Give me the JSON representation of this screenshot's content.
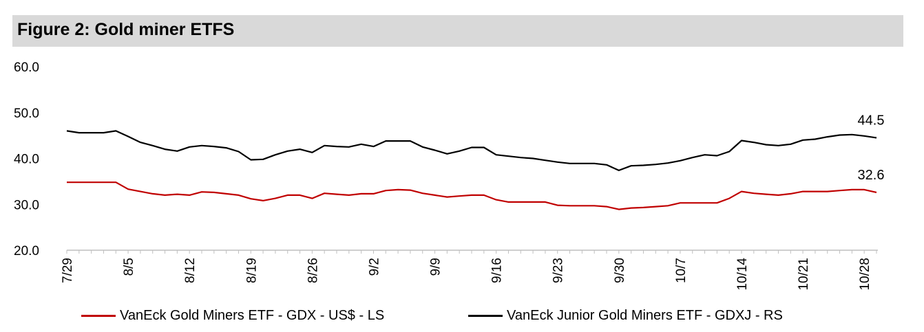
{
  "figure_title": "Figure 2: Gold miner ETFS",
  "colors": {
    "gdx": "#c00000",
    "gdxj": "#000000",
    "title_bg": "#d9d9d9"
  },
  "chart_data": {
    "type": "line",
    "title": "Figure 2: Gold miner ETFS",
    "ylim": [
      20,
      60
    ],
    "yticks": [
      "60.0",
      "50.0",
      "40.0",
      "30.0",
      "20.0"
    ],
    "ytick_values": [
      60,
      50,
      40,
      30,
      20
    ],
    "xtick_labels": [
      "7/29",
      "8/5",
      "8/12",
      "8/19",
      "8/26",
      "9/2",
      "9/9",
      "9/16",
      "9/23",
      "9/30",
      "10/7",
      "10/14",
      "10/21",
      "10/28"
    ],
    "xtick_index": [
      0,
      5,
      10,
      15,
      20,
      25,
      30,
      35,
      40,
      45,
      50,
      55,
      60,
      65
    ],
    "series": [
      {
        "name": "VanEck Gold Miners ETF  - GDX  - US$ - LS",
        "color_key": "gdx",
        "values": [
          34.8,
          34.8,
          34.8,
          34.8,
          34.8,
          33.3,
          32.8,
          32.3,
          32.0,
          32.2,
          32.0,
          32.7,
          32.6,
          32.3,
          32.0,
          31.2,
          30.8,
          31.3,
          32.0,
          32.0,
          31.3,
          32.4,
          32.2,
          32.0,
          32.3,
          32.3,
          33.0,
          33.2,
          33.1,
          32.4,
          32.0,
          31.6,
          31.8,
          32.0,
          32.0,
          31.0,
          30.5,
          30.5,
          30.5,
          30.5,
          29.8,
          29.7,
          29.7,
          29.7,
          29.5,
          28.9,
          29.2,
          29.3,
          29.5,
          29.7,
          30.3,
          30.3,
          30.3,
          30.3,
          31.3,
          32.8,
          32.4,
          32.2,
          32.0,
          32.3,
          32.8,
          32.8,
          32.8,
          33.0,
          33.2,
          33.2,
          32.6
        ],
        "end_label": "32.6"
      },
      {
        "name": "VanEck Junior Gold Miners ETF - GDXJ - RS",
        "color_key": "gdxj",
        "values": [
          46.0,
          45.6,
          45.6,
          45.6,
          46.0,
          44.8,
          43.5,
          42.8,
          42.0,
          41.6,
          42.5,
          42.8,
          42.6,
          42.3,
          41.5,
          39.7,
          39.8,
          40.8,
          41.6,
          42.0,
          41.3,
          42.8,
          42.6,
          42.5,
          43.1,
          42.6,
          43.8,
          43.8,
          43.8,
          42.5,
          41.8,
          41.0,
          41.6,
          42.4,
          42.4,
          40.8,
          40.5,
          40.2,
          40.0,
          39.6,
          39.2,
          38.9,
          38.9,
          38.9,
          38.6,
          37.4,
          38.4,
          38.5,
          38.7,
          39.0,
          39.5,
          40.2,
          40.8,
          40.6,
          41.5,
          43.9,
          43.5,
          43.0,
          42.8,
          43.1,
          44.0,
          44.2,
          44.7,
          45.1,
          45.2,
          44.9,
          44.5
        ],
        "end_label": "44.5"
      }
    ],
    "legend_position": "bottom"
  }
}
